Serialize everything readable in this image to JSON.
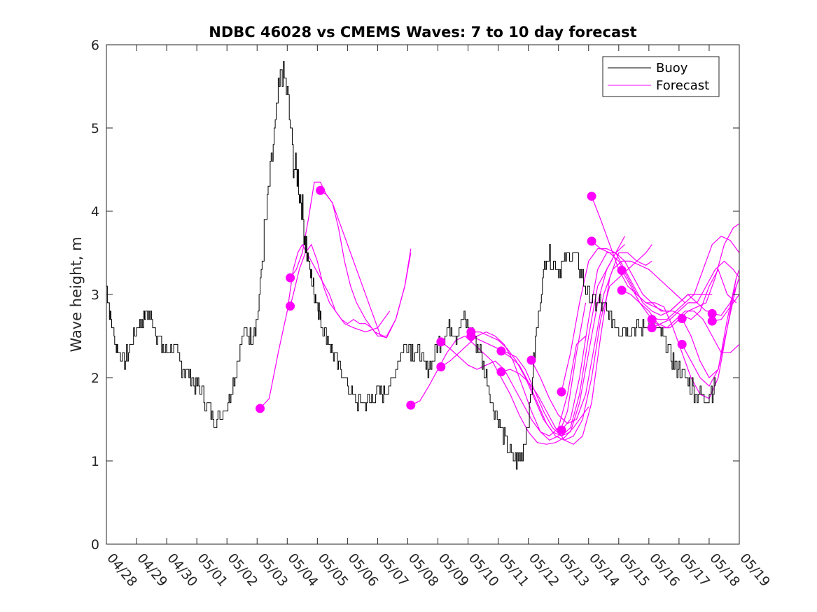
{
  "chart_data": {
    "type": "line",
    "title": "NDBC 46028 vs CMEMS Waves: 7 to 10 day forecast",
    "xlabel": "",
    "ylabel": "Wave height, m",
    "xlim": [
      "04/28",
      "05/19"
    ],
    "ylim": [
      0,
      6
    ],
    "x_ticks": [
      "04/28",
      "04/29",
      "04/30",
      "05/01",
      "05/02",
      "05/03",
      "05/04",
      "05/05",
      "05/06",
      "05/07",
      "05/08",
      "05/09",
      "05/10",
      "05/11",
      "05/12",
      "05/13",
      "05/14",
      "05/15",
      "05/16",
      "05/17",
      "05/18",
      "05/19"
    ],
    "y_ticks": [
      0,
      1,
      2,
      3,
      4,
      5,
      6
    ],
    "grid": false,
    "legend": {
      "placement": "top-right",
      "entries": [
        "Buoy",
        "Forecast"
      ]
    },
    "colors": {
      "buoy": "#000000",
      "forecast": "#ff00ff"
    },
    "buoy": {
      "name": "Buoy",
      "x_days": [
        0,
        0.1,
        0.25,
        0.4,
        0.6,
        0.8,
        1.0,
        1.2,
        1.4,
        1.6,
        1.8,
        2.0,
        2.2,
        2.4,
        2.6,
        2.8,
        3.0,
        3.2,
        3.4,
        3.6,
        3.8,
        4.0,
        4.2,
        4.4,
        4.6,
        4.8,
        5.0,
        5.2,
        5.4,
        5.6,
        5.8,
        6.0,
        6.2,
        6.35,
        6.5,
        6.65,
        6.8,
        6.9,
        7.0,
        7.1,
        7.2,
        7.4,
        7.6,
        7.8,
        8.0,
        8.2,
        8.4,
        8.6,
        8.8,
        9.0,
        9.2,
        9.4,
        9.6,
        9.8,
        10.0,
        10.2,
        10.4,
        10.6,
        10.8,
        11.0,
        11.2,
        11.4,
        11.6,
        11.8,
        12.0,
        12.2,
        12.4,
        12.6,
        12.8,
        13.0,
        13.2,
        13.4,
        13.6,
        13.8,
        14.0,
        14.2,
        14.4,
        14.6,
        14.8,
        15.0,
        15.2,
        15.4,
        15.6,
        15.8,
        16.0,
        16.2,
        16.4,
        16.6,
        16.8,
        17.0,
        17.2,
        17.4,
        17.6,
        17.8,
        18.0,
        18.2,
        18.4,
        18.6,
        18.8,
        19.0,
        19.2,
        19.4,
        19.6,
        19.8,
        20.0,
        20.2
      ],
      "values": [
        3.1,
        2.8,
        2.5,
        2.3,
        2.2,
        2.4,
        2.6,
        2.7,
        2.8,
        2.6,
        2.4,
        2.3,
        2.4,
        2.2,
        2.1,
        2.0,
        1.9,
        1.8,
        1.65,
        1.5,
        1.55,
        1.7,
        1.95,
        2.3,
        2.6,
        2.5,
        2.7,
        3.6,
        4.3,
        5.0,
        5.7,
        5.4,
        4.6,
        4.4,
        4.0,
        3.5,
        3.2,
        3.0,
        2.9,
        2.7,
        2.6,
        2.4,
        2.2,
        2.1,
        1.9,
        1.75,
        1.7,
        1.7,
        1.75,
        1.8,
        1.8,
        1.9,
        2.1,
        2.3,
        2.4,
        2.3,
        2.3,
        2.1,
        2.2,
        2.4,
        2.5,
        2.6,
        2.5,
        2.7,
        2.6,
        2.5,
        2.3,
        2.0,
        1.7,
        1.5,
        1.3,
        1.1,
        1.0,
        1.1,
        1.5,
        2.3,
        3.0,
        3.5,
        3.4,
        3.3,
        3.4,
        3.5,
        3.4,
        3.2,
        3.0,
        2.9,
        2.9,
        2.8,
        2.7,
        2.6,
        2.6,
        2.6,
        2.6,
        2.6,
        2.7,
        2.6,
        2.5,
        2.4,
        2.2,
        2.1,
        2.0,
        1.9,
        1.8,
        1.75,
        1.8,
        1.9
      ]
    },
    "forecast": {
      "name": "Forecast",
      "series": [
        {
          "x_days": [
            5.1,
            5.4,
            5.7,
            6.0,
            6.2,
            6.35,
            6.5,
            6.8,
            7.1,
            7.4,
            7.6,
            7.9,
            8.2,
            8.6,
            9.0,
            9.4
          ],
          "values": [
            1.63,
            1.75,
            2.3,
            2.8,
            3.3,
            3.5,
            3.6,
            3.4,
            3.2,
            3.0,
            2.8,
            2.65,
            2.6,
            2.55,
            2.6,
            2.8
          ]
        },
        {
          "x_days": [
            6.1,
            6.2,
            6.4,
            6.6,
            6.8,
            7.0,
            7.2,
            7.4,
            7.6,
            7.8,
            8.0,
            8.2,
            8.4,
            8.6,
            8.8,
            9.0,
            9.3,
            9.6,
            9.9,
            10.1
          ],
          "values": [
            2.86,
            3.0,
            3.3,
            3.5,
            3.6,
            3.4,
            3.1,
            2.9,
            2.8,
            2.7,
            2.65,
            2.7,
            2.65,
            2.65,
            2.6,
            2.5,
            2.5,
            2.7,
            3.1,
            3.5
          ]
        },
        {
          "x_days": [
            6.1,
            6.3,
            6.5,
            6.7,
            6.9,
            7.1,
            7.3,
            7.5,
            7.7,
            7.9,
            8.1,
            8.3,
            8.6,
            8.9,
            9.2
          ],
          "values": [
            3.2,
            3.3,
            3.5,
            3.9,
            4.35,
            4.35,
            4.2,
            4.1,
            3.8,
            3.4,
            3.1,
            2.9,
            2.7,
            2.55,
            2.5
          ]
        },
        {
          "x_days": [
            7.1,
            7.3,
            7.5,
            7.7,
            7.9,
            8.1,
            8.3,
            8.5,
            8.7,
            8.9,
            9.1,
            9.3,
            9.6,
            9.9,
            10.1
          ],
          "values": [
            4.25,
            4.2,
            4.1,
            3.9,
            3.7,
            3.5,
            3.3,
            3.1,
            2.9,
            2.7,
            2.5,
            2.48,
            2.7,
            3.1,
            3.55
          ]
        },
        {
          "x_days": [
            10.1,
            10.4,
            10.7,
            11.0,
            11.3,
            11.6,
            11.9,
            12.2,
            12.5,
            12.8,
            13.1,
            13.4,
            13.7,
            14.0,
            14.3,
            14.6,
            14.9,
            15.2,
            15.5,
            15.8,
            16.0
          ],
          "values": [
            1.67,
            1.72,
            1.9,
            2.1,
            2.3,
            2.45,
            2.5,
            2.4,
            2.3,
            2.2,
            2.0,
            1.8,
            1.55,
            1.35,
            1.22,
            1.2,
            1.22,
            1.28,
            1.4,
            1.55,
            1.65
          ]
        },
        {
          "x_days": [
            11.1,
            11.4,
            11.7,
            12.0,
            12.3,
            12.6,
            12.9,
            13.2,
            13.5,
            13.8,
            14.1,
            14.4,
            14.7,
            15.0,
            15.3,
            15.6,
            15.9
          ],
          "values": [
            2.43,
            2.35,
            2.25,
            2.15,
            2.1,
            2.15,
            2.2,
            2.1,
            1.9,
            1.7,
            1.5,
            1.35,
            1.3,
            1.4,
            1.8,
            2.4,
            2.5
          ]
        },
        {
          "x_days": [
            11.1,
            11.4,
            11.7,
            12.0,
            12.3,
            12.6,
            12.9,
            13.2,
            13.5,
            13.8,
            14.1,
            14.4,
            14.7,
            15.0,
            15.3,
            15.6,
            15.9
          ],
          "values": [
            2.13,
            2.2,
            2.3,
            2.4,
            2.5,
            2.55,
            2.5,
            2.4,
            2.2,
            1.9,
            1.6,
            1.35,
            1.25,
            1.3,
            1.6,
            2.3,
            2.9
          ]
        },
        {
          "x_days": [
            12.1,
            12.4,
            12.7,
            13.0,
            13.3,
            13.6,
            13.9,
            14.2,
            14.5,
            14.8,
            15.1,
            15.4,
            15.7,
            16.0,
            16.3,
            16.6,
            16.9,
            17.2
          ],
          "values": [
            2.55,
            2.55,
            2.5,
            2.45,
            2.35,
            2.2,
            2.0,
            1.75,
            1.5,
            1.35,
            1.3,
            1.4,
            1.8,
            2.5,
            3.1,
            3.3,
            3.5,
            3.7
          ]
        },
        {
          "x_days": [
            12.1,
            12.4,
            12.7,
            13.0,
            13.3,
            13.6,
            13.9,
            14.2,
            14.5,
            14.8,
            15.1,
            15.4,
            15.7,
            16.0,
            16.3,
            16.6,
            16.9,
            17.2
          ],
          "values": [
            2.5,
            2.45,
            2.4,
            2.35,
            2.3,
            2.25,
            2.1,
            1.85,
            1.6,
            1.4,
            1.3,
            1.35,
            1.7,
            2.3,
            2.9,
            3.3,
            3.5,
            3.6
          ]
        },
        {
          "x_days": [
            13.1,
            13.4,
            13.7,
            14.0,
            14.3,
            14.6,
            14.9,
            15.2,
            15.5,
            15.8,
            16.1,
            16.4,
            16.7,
            17.0,
            17.3,
            17.6,
            17.9,
            18.1
          ],
          "values": [
            2.32,
            2.25,
            2.15,
            1.95,
            1.7,
            1.45,
            1.3,
            1.25,
            1.3,
            1.5,
            2.0,
            2.7,
            3.1,
            3.2,
            3.3,
            3.4,
            3.5,
            3.6
          ]
        },
        {
          "x_days": [
            13.1,
            13.4,
            13.7,
            14.0,
            14.3,
            14.6,
            14.9,
            15.2,
            15.5,
            15.8,
            16.1,
            16.4,
            16.7,
            17.0,
            17.3,
            17.6,
            17.9,
            18.1
          ],
          "values": [
            2.07,
            2.1,
            2.05,
            1.95,
            1.8,
            1.6,
            1.4,
            1.25,
            1.2,
            1.3,
            1.7,
            2.5,
            3.2,
            3.5,
            3.5,
            3.4,
            3.35,
            3.4
          ]
        },
        {
          "x_days": [
            14.1,
            14.4,
            14.7,
            15.0,
            15.3,
            15.6,
            15.9,
            16.2,
            16.5,
            16.8,
            17.1,
            17.4,
            17.7,
            18.0,
            18.3,
            18.6,
            18.9,
            19.2
          ],
          "values": [
            2.21,
            2.0,
            1.75,
            1.55,
            1.45,
            1.5,
            1.8,
            2.4,
            3.0,
            3.3,
            3.4,
            3.4,
            3.35,
            3.3,
            3.2,
            3.1,
            3.0,
            2.9
          ]
        },
        {
          "x_days": [
            15.1,
            15.4,
            15.7,
            16.0,
            16.3,
            16.6,
            16.9,
            17.2,
            17.5,
            17.8,
            18.1,
            18.4,
            18.7,
            19.0,
            19.3,
            19.6,
            19.9,
            20.1
          ],
          "values": [
            1.83,
            2.3,
            2.9,
            3.4,
            3.55,
            3.55,
            3.5,
            3.4,
            3.2,
            3.0,
            2.9,
            2.8,
            2.8,
            2.9,
            3.0,
            3.0,
            3.0,
            3.0
          ]
        },
        {
          "x_days": [
            15.1,
            15.4,
            15.7,
            16.0,
            16.3,
            16.6,
            16.9,
            17.2,
            17.5,
            17.8,
            18.1,
            18.4,
            18.7,
            19.0,
            19.3,
            19.6,
            19.9,
            20.1
          ],
          "values": [
            1.37,
            1.5,
            2.0,
            2.7,
            3.3,
            3.5,
            3.5,
            3.3,
            3.1,
            2.9,
            2.8,
            2.75,
            2.8,
            2.9,
            3.0,
            2.9,
            2.8,
            2.8
          ]
        },
        {
          "x_days": [
            16.1,
            16.4,
            16.7,
            17.0,
            17.3,
            17.6,
            17.9,
            18.2,
            18.5,
            18.8,
            19.1,
            19.4,
            19.7,
            20.0,
            20.3,
            20.6,
            20.9
          ],
          "values": [
            4.18,
            3.9,
            3.6,
            3.3,
            3.1,
            3.0,
            2.9,
            2.9,
            2.85,
            2.6,
            2.3,
            2.0,
            1.8,
            1.75,
            2.0,
            2.6,
            3.2
          ]
        },
        {
          "x_days": [
            16.1,
            16.4,
            16.7,
            17.0,
            17.3,
            17.6,
            17.9,
            18.2,
            18.5,
            18.8,
            19.1,
            19.4,
            19.7,
            20.0,
            20.3,
            20.6,
            20.9
          ],
          "values": [
            3.64,
            3.55,
            3.5,
            3.4,
            3.2,
            3.0,
            2.9,
            2.85,
            2.8,
            2.8,
            2.75,
            2.7,
            2.8,
            3.1,
            3.3,
            3.0,
            2.9
          ]
        },
        {
          "x_days": [
            17.1,
            17.4,
            17.7,
            18.0,
            18.3,
            18.6,
            18.9,
            19.2,
            19.5,
            19.8,
            20.1,
            20.4,
            20.7,
            21.0
          ],
          "values": [
            3.29,
            3.1,
            2.9,
            2.75,
            2.7,
            2.7,
            2.8,
            2.9,
            3.0,
            3.3,
            3.6,
            3.7,
            3.65,
            3.5
          ]
        },
        {
          "x_days": [
            17.1,
            17.4,
            17.7,
            18.0,
            18.3,
            18.6,
            18.9,
            19.2,
            19.5,
            19.8,
            20.1,
            20.4,
            20.7,
            21.0
          ],
          "values": [
            3.05,
            3.0,
            2.9,
            2.8,
            2.65,
            2.6,
            2.7,
            2.8,
            2.8,
            2.7,
            2.5,
            2.3,
            2.3,
            2.4
          ]
        },
        {
          "x_days": [
            18.1,
            18.4,
            18.7,
            19.0,
            19.3,
            19.6,
            19.9,
            20.2,
            20.5,
            20.8,
            21.0
          ],
          "values": [
            2.7,
            2.6,
            2.6,
            2.7,
            2.8,
            2.85,
            2.9,
            3.2,
            3.6,
            3.8,
            3.85
          ]
        },
        {
          "x_days": [
            18.1,
            18.4,
            18.7,
            19.0,
            19.3,
            19.6,
            19.9,
            20.2,
            20.5,
            20.8,
            21.0
          ],
          "values": [
            2.6,
            2.65,
            2.7,
            2.8,
            2.9,
            2.9,
            3.1,
            3.3,
            3.4,
            3.3,
            3.2
          ]
        },
        {
          "x_days": [
            19.1,
            19.4,
            19.7,
            20.0,
            20.3,
            20.6,
            20.9,
            21.0
          ],
          "values": [
            2.71,
            2.5,
            2.2,
            2.0,
            2.1,
            2.6,
            3.1,
            3.2
          ]
        },
        {
          "x_days": [
            19.1,
            19.4,
            19.7,
            20.0,
            20.3,
            20.6,
            20.9,
            21.0
          ],
          "values": [
            2.4,
            2.2,
            2.0,
            1.9,
            2.1,
            2.7,
            3.2,
            3.3
          ]
        },
        {
          "x_days": [
            20.1,
            20.4,
            20.7,
            21.0
          ],
          "values": [
            2.77,
            2.75,
            2.9,
            3.2
          ]
        },
        {
          "x_days": [
            20.1,
            20.4,
            20.7,
            21.0
          ],
          "values": [
            2.68,
            2.7,
            2.85,
            3.0
          ]
        }
      ],
      "markers": {
        "x_days": [
          5.1,
          6.1,
          6.1,
          7.1,
          10.1,
          11.1,
          11.1,
          12.1,
          12.1,
          13.1,
          13.1,
          14.1,
          15.1,
          15.1,
          16.1,
          16.1,
          17.1,
          17.1,
          18.1,
          18.1,
          19.1,
          19.1,
          20.1,
          20.1
        ],
        "values": [
          1.63,
          2.86,
          3.2,
          4.25,
          1.67,
          2.43,
          2.13,
          2.55,
          2.5,
          2.32,
          2.07,
          2.21,
          1.83,
          1.37,
          4.18,
          3.64,
          3.29,
          3.05,
          2.7,
          2.6,
          2.71,
          2.4,
          2.77,
          2.68
        ]
      }
    }
  }
}
